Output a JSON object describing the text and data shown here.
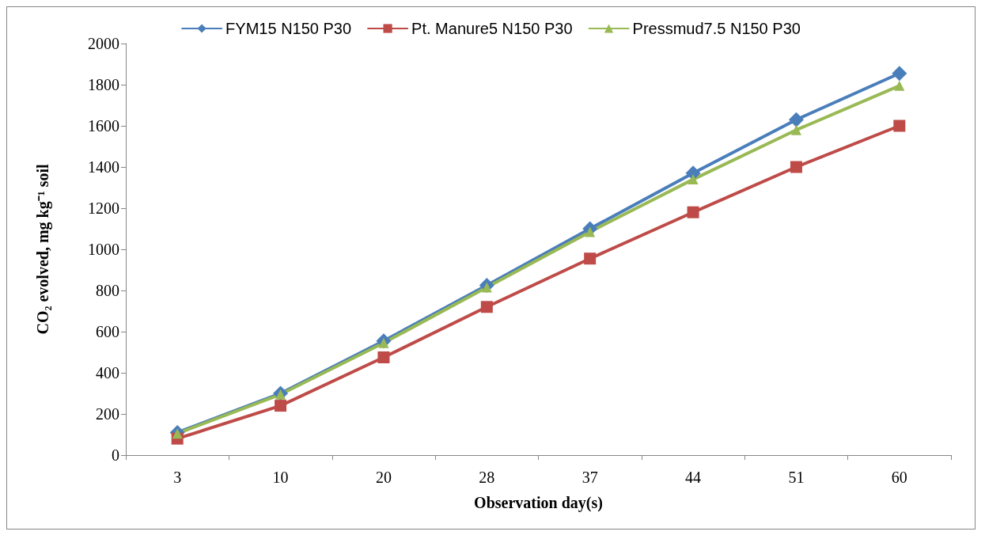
{
  "chart_data": {
    "type": "line",
    "xlabel": "Observation day(s)",
    "ylabel": "CO₂ evolved, mg kg⁻¹ soil",
    "categories": [
      "3",
      "10",
      "20",
      "28",
      "37",
      "44",
      "51",
      "60"
    ],
    "ylim": [
      0,
      2000
    ],
    "yticks": [
      0,
      200,
      400,
      600,
      800,
      1000,
      1200,
      1400,
      1600,
      1800,
      2000
    ],
    "grid": false,
    "legend": "top",
    "line_style": "solid",
    "series": [
      {
        "name": "FYM15 N150 P30",
        "color": "#4a7ebb",
        "marker": "diamond",
        "values": [
          110,
          300,
          555,
          825,
          1100,
          1370,
          1630,
          1855
        ]
      },
      {
        "name": "Pt. Manure5 N150 P30",
        "color": "#be4b48",
        "marker": "square",
        "values": [
          80,
          240,
          475,
          720,
          955,
          1180,
          1400,
          1600
        ]
      },
      {
        "name": "Pressmud7.5 N150 P30",
        "color": "#98b954",
        "marker": "triangle",
        "values": [
          105,
          295,
          545,
          815,
          1085,
          1340,
          1580,
          1795
        ]
      }
    ]
  }
}
